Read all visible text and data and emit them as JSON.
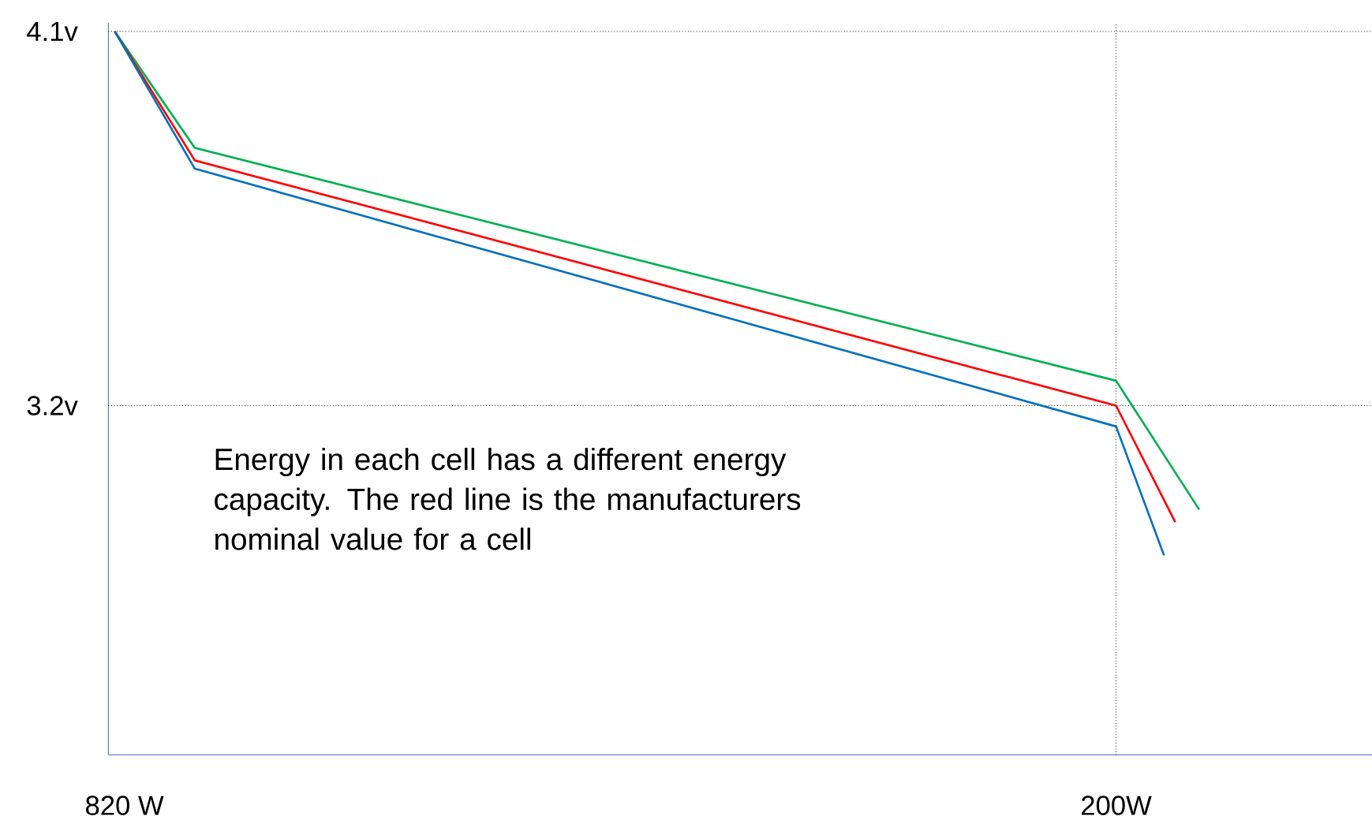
{
  "chart_data": {
    "type": "line",
    "x": [
      826,
      776,
      200,
      148
    ],
    "series": [
      {
        "color": "#00b050",
        "values": [
          4.1,
          3.82,
          3.26,
          2.95
        ]
      },
      {
        "color": "#ff0000",
        "x": [
          826,
          776,
          200,
          163
        ],
        "values": [
          4.1,
          3.79,
          3.2,
          2.92
        ]
      },
      {
        "color": "#0070c0",
        "x": [
          826,
          776,
          200,
          170
        ],
        "values": [
          4.1,
          3.77,
          3.15,
          2.84
        ]
      }
    ],
    "xlim": [
      830,
      40
    ],
    "ylim": [
      2.36,
      4.12
    ],
    "xticks": [
      {
        "value": 820,
        "label": "820 W"
      },
      {
        "value": 200,
        "label": "200W"
      }
    ],
    "yticks": [
      {
        "value": 4.1,
        "label": "4.1v"
      },
      {
        "value": 3.2,
        "label": "3.2v"
      }
    ],
    "ref_lines": [
      {
        "axis": "y",
        "value": 4.1,
        "line_style": "dotted"
      },
      {
        "axis": "y",
        "value": 3.2,
        "line_style": "dotted"
      },
      {
        "axis": "x",
        "value": 200,
        "line_style": "dotted"
      }
    ],
    "annotations": [
      "Energy in each cell has a different energy capacity. The red line is the manufacturers nominal value for a cell"
    ],
    "marker": "none",
    "line_style": "solid"
  }
}
